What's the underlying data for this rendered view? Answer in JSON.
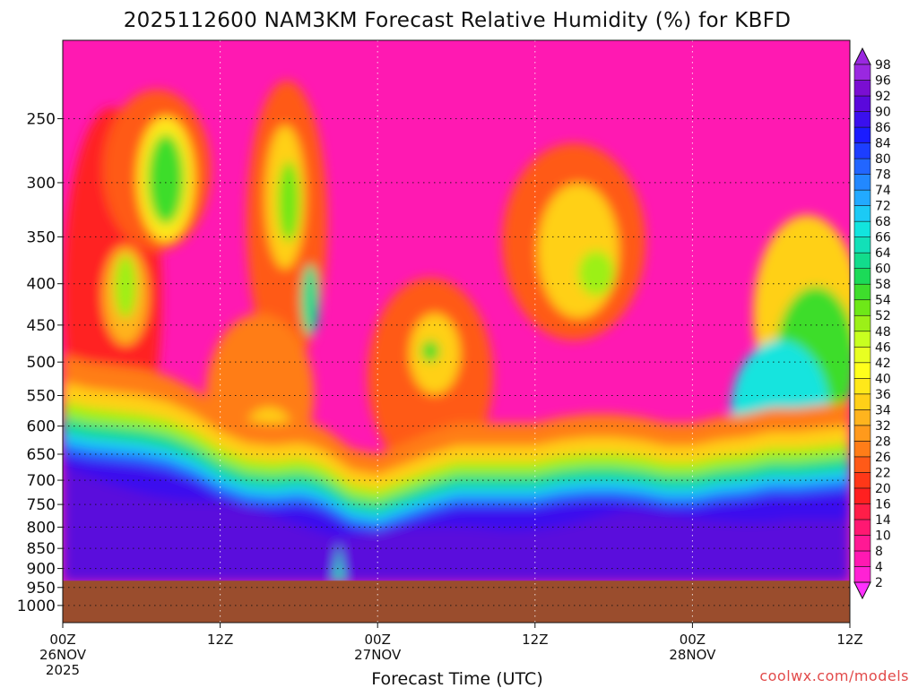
{
  "chart_data": {
    "type": "heatmap",
    "title": "2025112600 NAM3KM Forecast Relative Humidity (%) for KBFD",
    "xlabel": "Forecast Time (UTC)",
    "ylabel": "",
    "credit": "coolwx.com/models",
    "x_ticks": [
      {
        "hour": 0,
        "line1": "00Z",
        "line2": "26NOV",
        "line3": "2025"
      },
      {
        "hour": 12,
        "line1": "12Z",
        "line2": "",
        "line3": ""
      },
      {
        "hour": 24,
        "line1": "00Z",
        "line2": "27NOV",
        "line3": ""
      },
      {
        "hour": 36,
        "line1": "12Z",
        "line2": "",
        "line3": ""
      },
      {
        "hour": 48,
        "line1": "00Z",
        "line2": "28NOV",
        "line3": ""
      },
      {
        "hour": 60,
        "line1": "12Z",
        "line2": "",
        "line3": ""
      }
    ],
    "xlim": [
      0,
      60
    ],
    "ylim": [
      1050,
      200
    ],
    "y_scale": "log-pressure (hPa)",
    "y_ticks": [
      250,
      300,
      350,
      400,
      450,
      500,
      550,
      600,
      650,
      700,
      750,
      800,
      850,
      900,
      950,
      1000
    ],
    "grid": "dotted",
    "surface_pressure_hpa": 932,
    "ground_color": "#9a4d2d",
    "colorbar": {
      "levels": [
        "2",
        "4",
        "8",
        "10",
        "14",
        "16",
        "20",
        "22",
        "26",
        "28",
        "32",
        "34",
        "36",
        "40",
        "42",
        "46",
        "48",
        "52",
        "54",
        "58",
        "60",
        "64",
        "66",
        "68",
        "72",
        "74",
        "78",
        "80",
        "84",
        "86",
        "90",
        "92",
        "96",
        "98"
      ],
      "colors": [
        "#ff30ff",
        "#ff22d4",
        "#ff19b2",
        "#ff1994",
        "#ff1872",
        "#ff1e48",
        "#ff2020",
        "#ff3818",
        "#ff5a18",
        "#ff7d18",
        "#ff9a1c",
        "#ffb41e",
        "#ffd018",
        "#ffe81a",
        "#ffff1c",
        "#e8ff22",
        "#c8ff20",
        "#9cf018",
        "#6ee818",
        "#3edd2c",
        "#1cda58",
        "#12dc8c",
        "#12e0b8",
        "#12e4de",
        "#1ccaf5",
        "#22aaff",
        "#2288ff",
        "#2266ff",
        "#1c3eff",
        "#1a1cff",
        "#3a10ee",
        "#5a08dc",
        "#7a0ed2",
        "#9a28e0"
      ]
    },
    "series": [
      {
        "x": [
          0,
          2,
          4,
          6,
          8,
          10,
          12,
          14,
          16,
          18,
          19,
          20,
          22,
          24,
          26,
          28,
          30,
          32,
          34,
          36,
          38,
          40,
          42,
          44,
          46,
          48,
          50,
          52,
          54,
          56,
          58,
          60
        ],
        "values": [
          640,
          650,
          655,
          660,
          670,
          690,
          720,
          740,
          745,
          740,
          745,
          755,
          790,
          800,
          780,
          760,
          745,
          745,
          745,
          745,
          735,
          730,
          730,
          735,
          745,
          745,
          735,
          730,
          720,
          720,
          715,
          710
        ]
      }
    ]
  }
}
